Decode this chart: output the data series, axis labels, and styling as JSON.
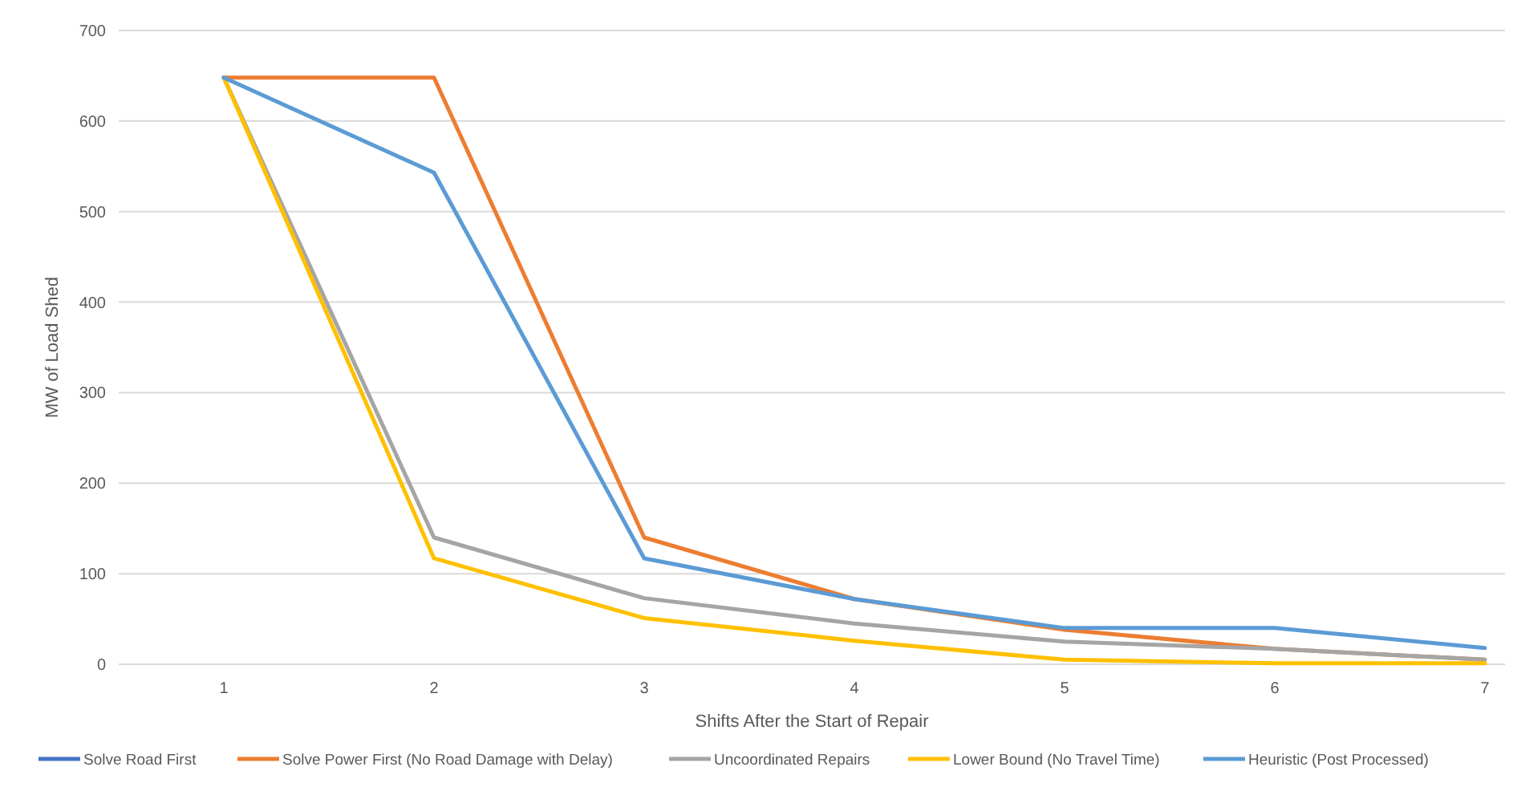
{
  "chart_data": {
    "type": "line",
    "xlabel": "Shifts After the Start of Repair",
    "ylabel": "MW of Load Shed",
    "categories": [
      "1",
      "2",
      "3",
      "4",
      "5",
      "6",
      "7"
    ],
    "ylim": [
      0,
      700
    ],
    "yticks": [
      0,
      100,
      200,
      300,
      400,
      500,
      600,
      700
    ],
    "grid": "y",
    "legend": "bottom",
    "line_style": "solid",
    "marker": "none",
    "series": [
      {
        "name": "Solve Road First",
        "color": "#4472c4",
        "values": [
          null,
          null,
          null,
          null,
          null,
          null,
          null
        ]
      },
      {
        "name": "Solve Power First (No Road Damage with Delay)",
        "color": "#ed7d31",
        "values": [
          648,
          648,
          140,
          72,
          38,
          17,
          5
        ]
      },
      {
        "name": "Uncoordinated Repairs",
        "color": "#a5a5a5",
        "values": [
          648,
          140,
          73,
          45,
          25,
          17,
          5
        ]
      },
      {
        "name": "Lower Bound (No Travel Time)",
        "color": "#ffc000",
        "values": [
          648,
          117,
          51,
          26,
          5,
          1,
          1
        ]
      },
      {
        "name": "Heuristic (Post Processed)",
        "color": "#5b9bd5",
        "values": [
          648,
          543,
          117,
          72,
          40,
          40,
          18
        ]
      }
    ]
  }
}
